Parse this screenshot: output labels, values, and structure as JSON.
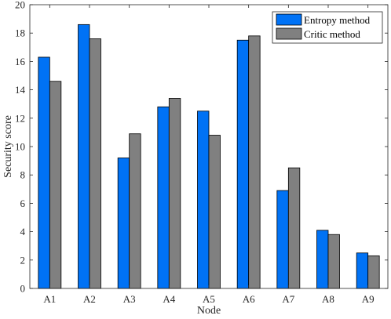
{
  "chart_data": {
    "type": "bar",
    "categories": [
      "A1",
      "A2",
      "A3",
      "A4",
      "A5",
      "A6",
      "A7",
      "A8",
      "A9"
    ],
    "series": [
      {
        "name": "Entropy method",
        "color": "#0072F5",
        "values": [
          16.3,
          18.6,
          9.2,
          12.8,
          12.5,
          17.5,
          6.9,
          4.1,
          2.5
        ]
      },
      {
        "name": "Critic method",
        "color": "#808080",
        "values": [
          14.6,
          17.6,
          10.9,
          13.4,
          10.8,
          17.8,
          8.5,
          3.8,
          2.3
        ]
      }
    ],
    "xlabel": "Node",
    "ylabel": "Security score",
    "ylim": [
      0,
      20
    ],
    "yticks": [
      0,
      2,
      4,
      6,
      8,
      10,
      12,
      14,
      16,
      18,
      20
    ],
    "grid": false,
    "legend_position": "top-right"
  }
}
